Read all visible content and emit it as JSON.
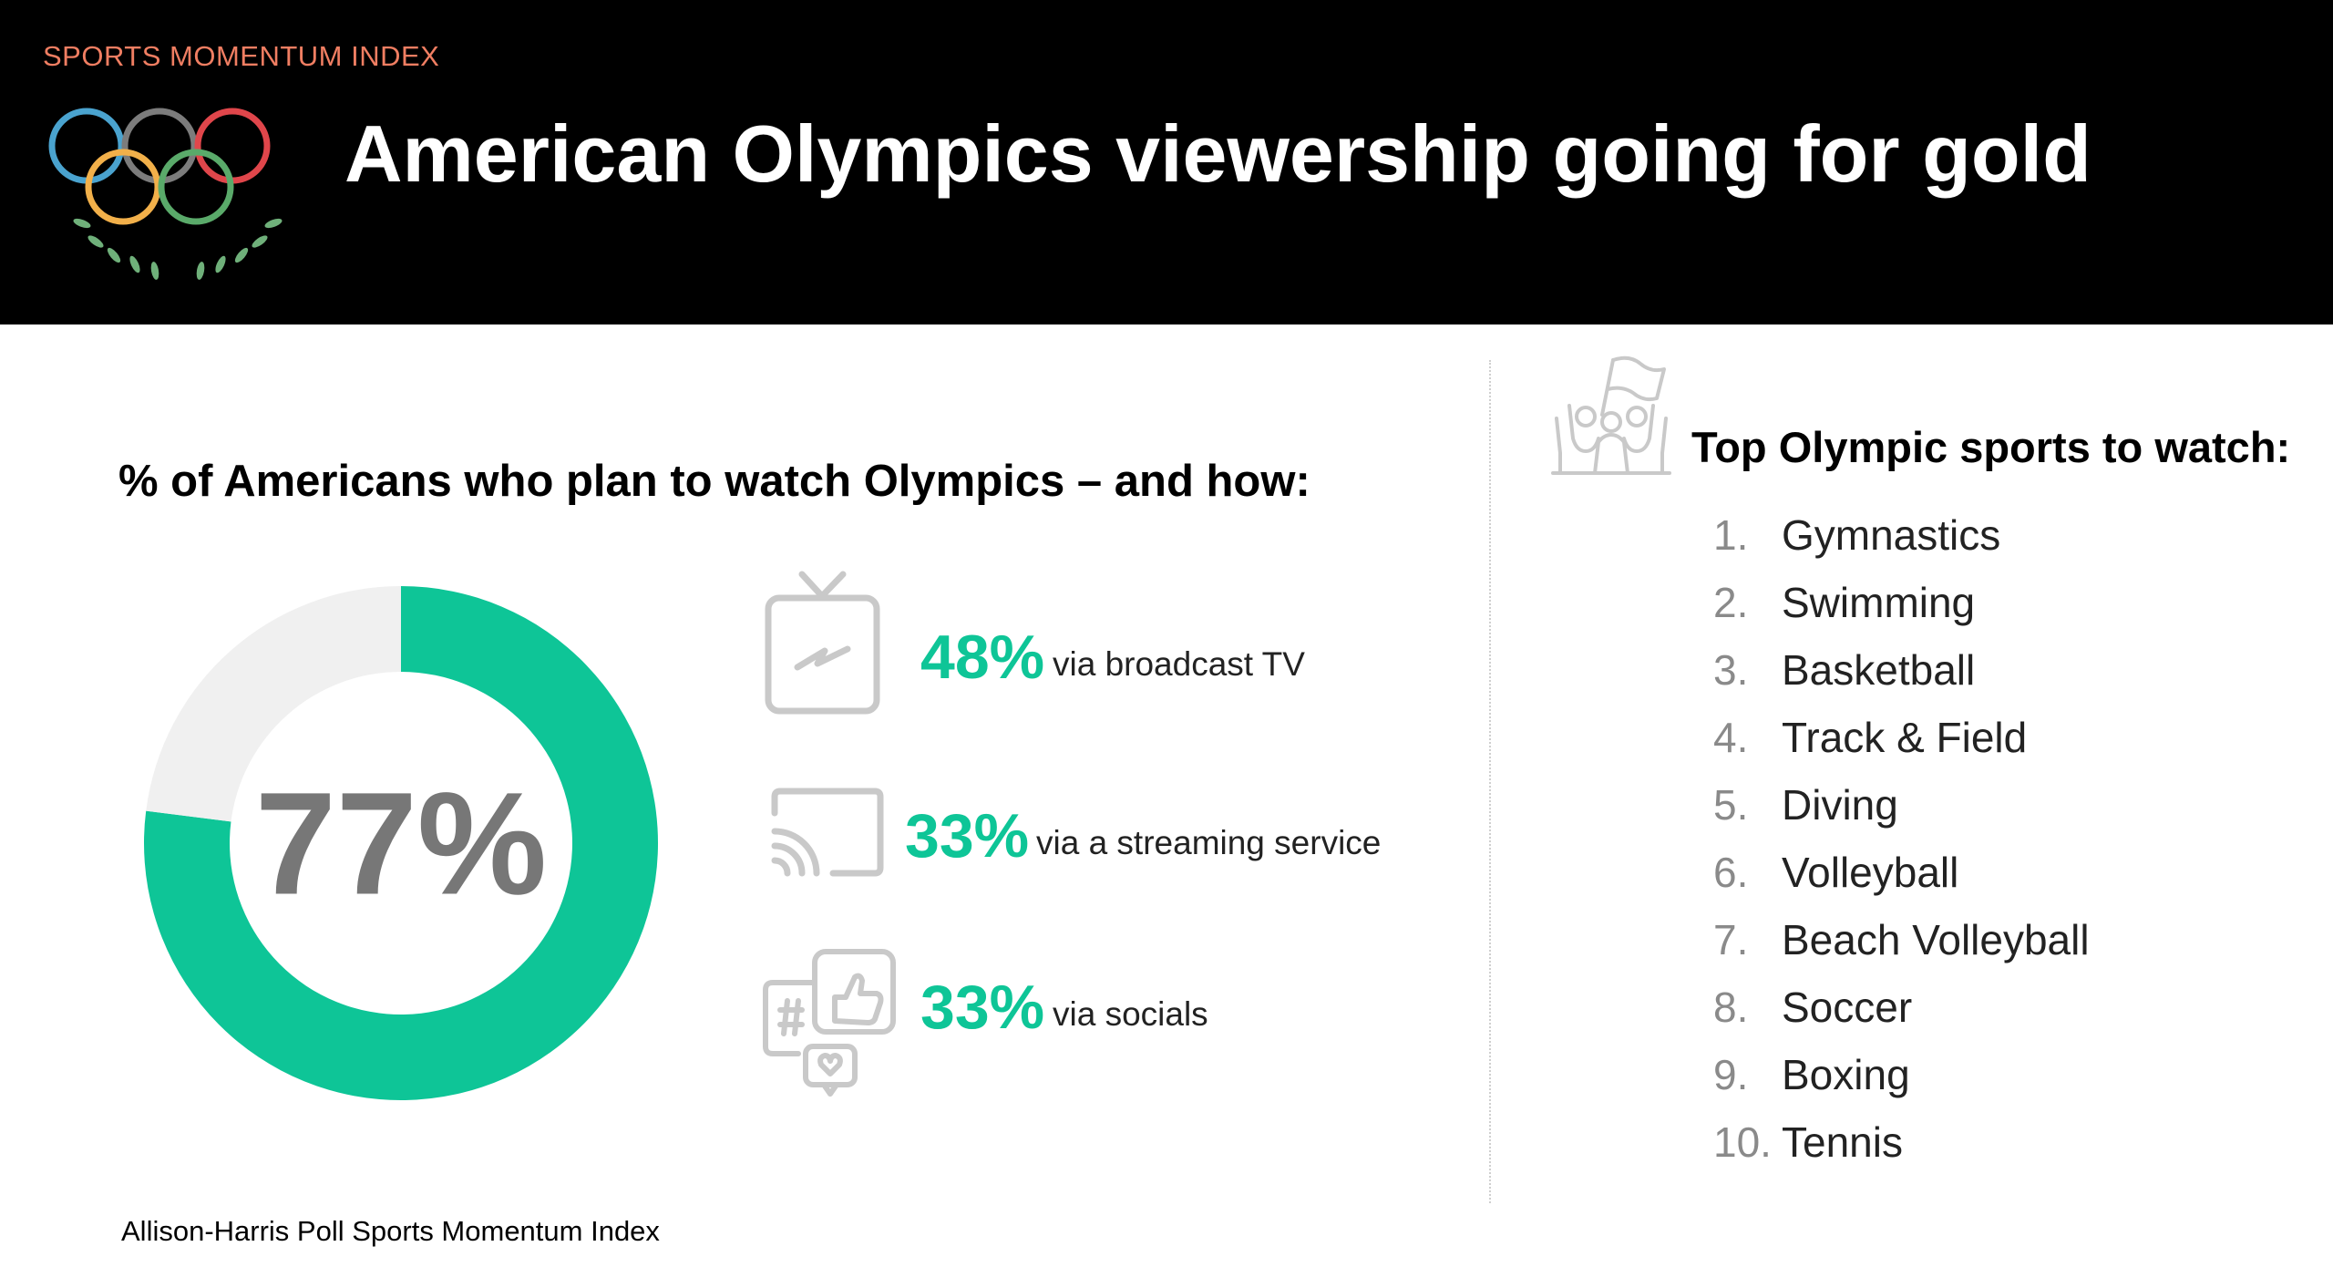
{
  "header": {
    "kicker": "SPORTS MOMENTUM INDEX",
    "title": "American Olympics viewership going for gold",
    "logo_icon": "olympic-rings-laurel-icon",
    "ring_colors": [
      "#4aa3cf",
      "#7c7c7c",
      "#e0464b",
      "#f2b04a",
      "#5aaa6a"
    ],
    "laurel_color": "#6fb07a"
  },
  "colors": {
    "accent": "#0ec597",
    "remainder": "#f0f0f0",
    "center_text": "#777777",
    "icon_gray": "#c9c9c9"
  },
  "left_panel": {
    "title": "% of Americans who plan to watch Olympics – and how:",
    "center_label": "77%"
  },
  "chart_data": {
    "type": "pie",
    "title": "% of Americans who plan to watch Olympics – and how:",
    "values": [
      77,
      23
    ],
    "unit": "%",
    "center_label": "77%"
  },
  "channels": [
    {
      "pct": "48%",
      "label": "via broadcast TV",
      "icon": "tv-icon"
    },
    {
      "pct": "33%",
      "label": "via a streaming service",
      "icon": "cast-screen-icon"
    },
    {
      "pct": "33%",
      "label": "via socials",
      "icon": "social-media-icon"
    }
  ],
  "right_panel": {
    "title": "Top Olympic sports to watch:",
    "icon": "cheering-fans-icon",
    "sports": [
      {
        "num": "1.",
        "name": "Gymnastics"
      },
      {
        "num": "2.",
        "name": "Swimming"
      },
      {
        "num": "3.",
        "name": "Basketball"
      },
      {
        "num": "4.",
        "name": "Track & Field"
      },
      {
        "num": "5.",
        "name": "Diving"
      },
      {
        "num": "6.",
        "name": "Volleyball"
      },
      {
        "num": "7.",
        "name": "Beach Volleyball"
      },
      {
        "num": "8.",
        "name": "Soccer"
      },
      {
        "num": "9.",
        "name": "Boxing"
      },
      {
        "num": "10.",
        "name": "Tennis"
      }
    ]
  },
  "footer": {
    "source": "Allison-Harris Poll Sports Momentum Index"
  }
}
